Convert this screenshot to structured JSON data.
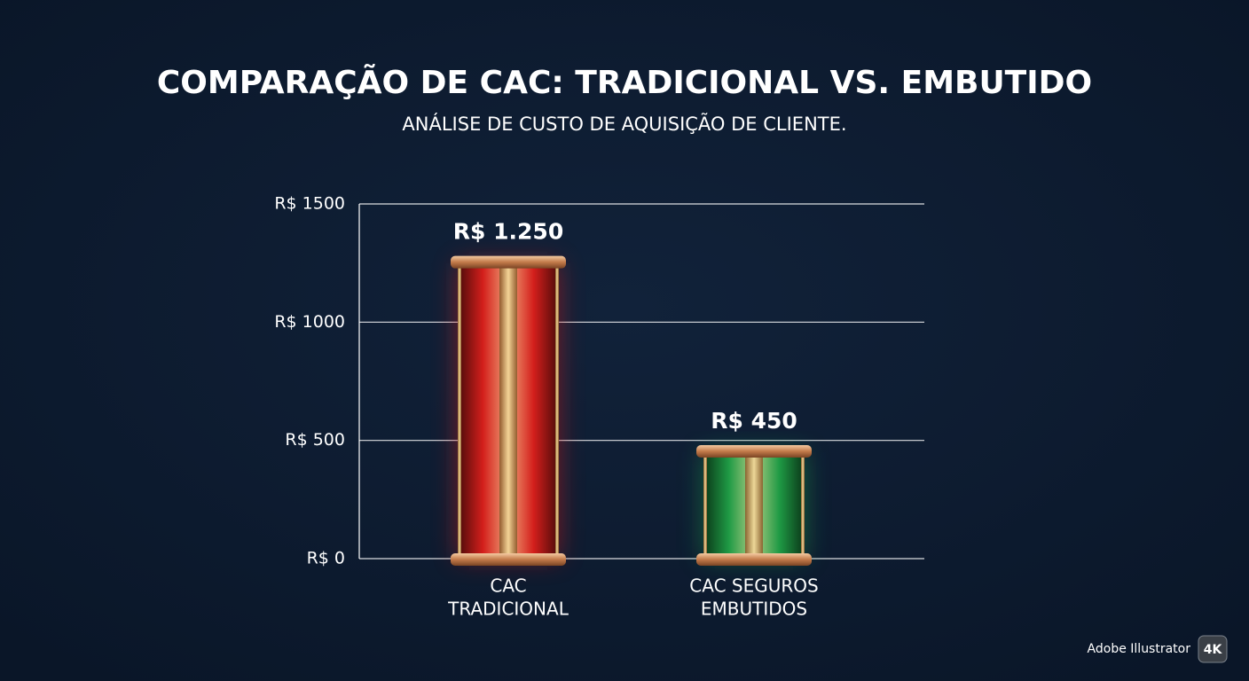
{
  "chart_data": {
    "type": "bar",
    "title": "COMPARAÇÃO DE CAC: TRADICIONAL VS. EMBUTIDO",
    "subtitle": "ANÁLISE DE CUSTO DE AQUISIÇÃO DE CLIENTE.",
    "categories": [
      [
        "CAC",
        "TRADICIONAL"
      ],
      [
        "CAC SEGUROS",
        "EMBUTIDOS"
      ]
    ],
    "values": [
      1250,
      450
    ],
    "value_labels": [
      "R$ 1.250",
      "R$ 450"
    ],
    "colors": [
      "#d41f1c",
      "#1f9a45"
    ],
    "ylim": [
      0,
      1500
    ],
    "yticks": [
      {
        "value": 0,
        "label": "R$ 0"
      },
      {
        "value": 500,
        "label": "R$ 500"
      },
      {
        "value": 1000,
        "label": "R$ 1000"
      },
      {
        "value": 1500,
        "label": "R$ 1500"
      }
    ],
    "grid": true
  },
  "watermark": {
    "text": "Adobe Illustrator",
    "badge": "4K"
  }
}
